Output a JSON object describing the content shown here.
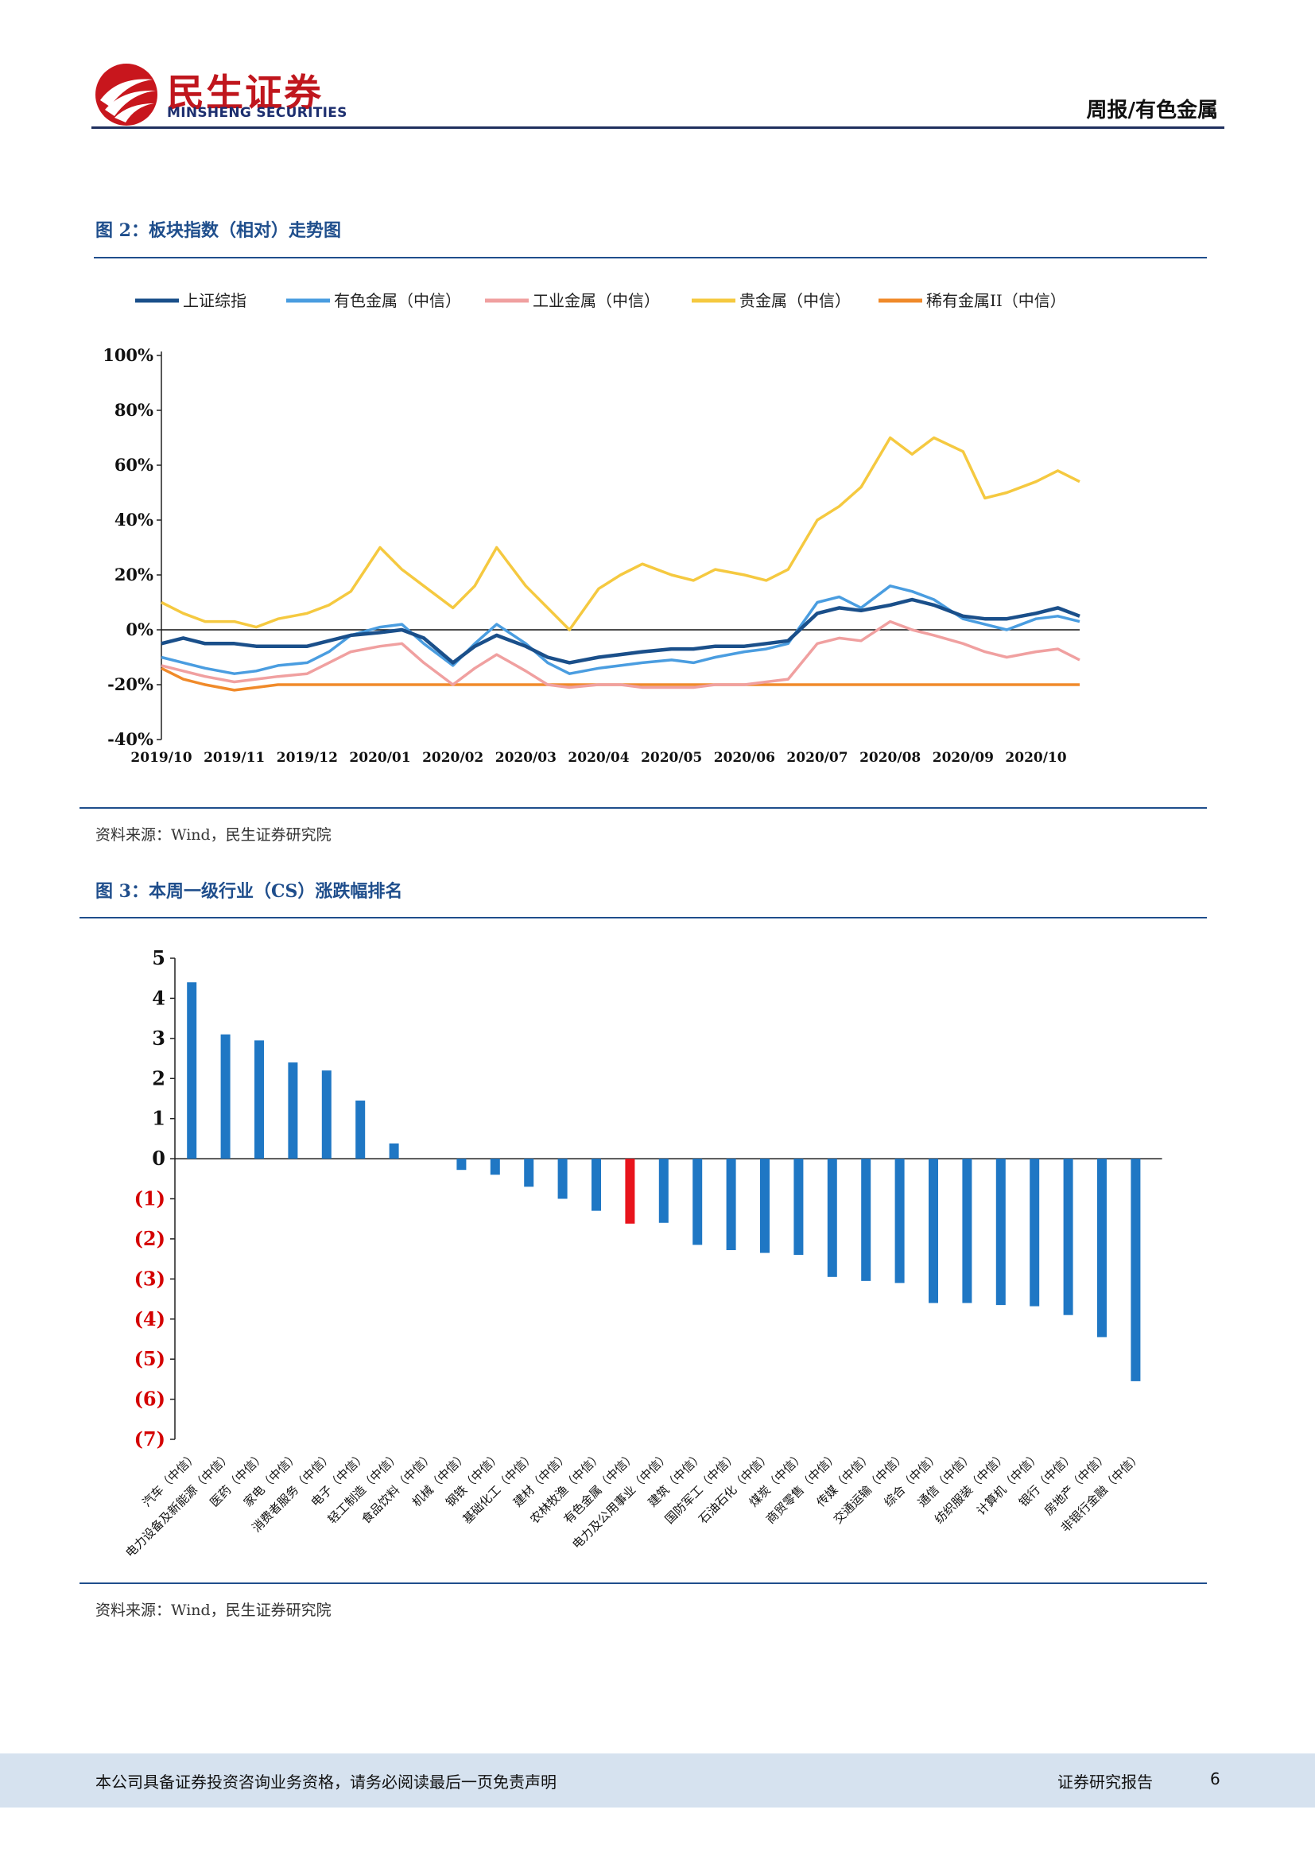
{
  "header": {
    "brand_cn": "民生证券",
    "brand_en": "MINSHENG SECURITIES",
    "section": "周报/有色金属"
  },
  "figure2": {
    "title": "图 2：板块指数（相对）走势图",
    "source": "资料来源：Wind，民生证券研究院"
  },
  "figure3": {
    "title": "图 3：本周一级行业（CS）涨跌幅排名",
    "source": "资料来源：Wind，民生证券研究院"
  },
  "footer": {
    "disclaimer": "本公司具备证券投资咨询业务资格，请务必阅读最后一页免责声明",
    "report_type": "证券研究报告",
    "page_number": "6"
  },
  "colors": {
    "shanghai": "#1a4f8a",
    "nonferrous": "#4a9de0",
    "industrial": "#f0a0a0",
    "precious": "#f5c940",
    "rare": "#f08a2a",
    "bar_blue": "#1f77c4",
    "bar_highlight": "#e8141c",
    "negative_label": "#d40000"
  },
  "chart_data": [
    {
      "type": "line",
      "title": "",
      "x": [
        "2019/10",
        "2019/11",
        "2019/12",
        "2020/01",
        "2020/02",
        "2020/03",
        "2020/04",
        "2020/05",
        "2020/06",
        "2020/07",
        "2020/08",
        "2020/09",
        "2020/10"
      ],
      "y_ticks": [
        "100%",
        "80%",
        "60%",
        "40%",
        "20%",
        "0%",
        "-20%",
        "-40%"
      ],
      "ylim": [
        -40,
        100
      ],
      "legend_position": "top",
      "series": [
        {
          "name": "上证综指",
          "color_key": "shanghai",
          "points": [
            [
              0,
              -5
            ],
            [
              0.3,
              -3
            ],
            [
              0.6,
              -5
            ],
            [
              1,
              -5
            ],
            [
              1.3,
              -6
            ],
            [
              1.6,
              -6
            ],
            [
              2,
              -6
            ],
            [
              2.3,
              -4
            ],
            [
              2.6,
              -2
            ],
            [
              3,
              -1
            ],
            [
              3.3,
              0
            ],
            [
              3.6,
              -3
            ],
            [
              4,
              -12
            ],
            [
              4.3,
              -6
            ],
            [
              4.6,
              -2
            ],
            [
              5,
              -6
            ],
            [
              5.3,
              -10
            ],
            [
              5.6,
              -12
            ],
            [
              6,
              -10
            ],
            [
              6.3,
              -9
            ],
            [
              6.6,
              -8
            ],
            [
              7,
              -7
            ],
            [
              7.3,
              -7
            ],
            [
              7.6,
              -6
            ],
            [
              8,
              -6
            ],
            [
              8.3,
              -5
            ],
            [
              8.6,
              -4
            ],
            [
              9,
              6
            ],
            [
              9.3,
              8
            ],
            [
              9.6,
              7
            ],
            [
              10,
              9
            ],
            [
              10.3,
              11
            ],
            [
              10.6,
              9
            ],
            [
              11,
              5
            ],
            [
              11.3,
              4
            ],
            [
              11.6,
              4
            ],
            [
              12,
              6
            ],
            [
              12.3,
              8
            ],
            [
              12.6,
              5
            ]
          ]
        },
        {
          "name": "有色金属（中信）",
          "color_key": "nonferrous",
          "points": [
            [
              0,
              -10
            ],
            [
              0.3,
              -12
            ],
            [
              0.6,
              -14
            ],
            [
              1,
              -16
            ],
            [
              1.3,
              -15
            ],
            [
              1.6,
              -13
            ],
            [
              2,
              -12
            ],
            [
              2.3,
              -8
            ],
            [
              2.6,
              -2
            ],
            [
              3,
              1
            ],
            [
              3.3,
              2
            ],
            [
              3.6,
              -5
            ],
            [
              4,
              -13
            ],
            [
              4.3,
              -5
            ],
            [
              4.6,
              2
            ],
            [
              5,
              -5
            ],
            [
              5.3,
              -12
            ],
            [
              5.6,
              -16
            ],
            [
              6,
              -14
            ],
            [
              6.3,
              -13
            ],
            [
              6.6,
              -12
            ],
            [
              7,
              -11
            ],
            [
              7.3,
              -12
            ],
            [
              7.6,
              -10
            ],
            [
              8,
              -8
            ],
            [
              8.3,
              -7
            ],
            [
              8.6,
              -5
            ],
            [
              9,
              10
            ],
            [
              9.3,
              12
            ],
            [
              9.6,
              8
            ],
            [
              10,
              16
            ],
            [
              10.3,
              14
            ],
            [
              10.6,
              11
            ],
            [
              11,
              4
            ],
            [
              11.3,
              2
            ],
            [
              11.6,
              0
            ],
            [
              12,
              4
            ],
            [
              12.3,
              5
            ],
            [
              12.6,
              3
            ]
          ]
        },
        {
          "name": "工业金属（中信）",
          "color_key": "industrial",
          "points": [
            [
              0,
              -13
            ],
            [
              0.3,
              -15
            ],
            [
              0.6,
              -17
            ],
            [
              1,
              -19
            ],
            [
              1.3,
              -18
            ],
            [
              1.6,
              -17
            ],
            [
              2,
              -16
            ],
            [
              2.3,
              -12
            ],
            [
              2.6,
              -8
            ],
            [
              3,
              -6
            ],
            [
              3.3,
              -5
            ],
            [
              3.6,
              -12
            ],
            [
              4,
              -20
            ],
            [
              4.3,
              -14
            ],
            [
              4.6,
              -9
            ],
            [
              5,
              -15
            ],
            [
              5.3,
              -20
            ],
            [
              5.6,
              -21
            ],
            [
              6,
              -20
            ],
            [
              6.3,
              -20
            ],
            [
              6.6,
              -21
            ],
            [
              7,
              -21
            ],
            [
              7.3,
              -21
            ],
            [
              7.6,
              -20
            ],
            [
              8,
              -20
            ],
            [
              8.3,
              -19
            ],
            [
              8.6,
              -18
            ],
            [
              9,
              -5
            ],
            [
              9.3,
              -3
            ],
            [
              9.6,
              -4
            ],
            [
              10,
              3
            ],
            [
              10.3,
              0
            ],
            [
              10.6,
              -2
            ],
            [
              11,
              -5
            ],
            [
              11.3,
              -8
            ],
            [
              11.6,
              -10
            ],
            [
              12,
              -8
            ],
            [
              12.3,
              -7
            ],
            [
              12.6,
              -11
            ]
          ]
        },
        {
          "name": "贵金属（中信）",
          "color_key": "precious",
          "points": [
            [
              0,
              10
            ],
            [
              0.3,
              6
            ],
            [
              0.6,
              3
            ],
            [
              1,
              3
            ],
            [
              1.3,
              1
            ],
            [
              1.6,
              4
            ],
            [
              2,
              6
            ],
            [
              2.3,
              9
            ],
            [
              2.6,
              14
            ],
            [
              3,
              30
            ],
            [
              3.3,
              22
            ],
            [
              3.6,
              16
            ],
            [
              4,
              8
            ],
            [
              4.3,
              16
            ],
            [
              4.6,
              30
            ],
            [
              5,
              16
            ],
            [
              5.3,
              8
            ],
            [
              5.6,
              0
            ],
            [
              6,
              15
            ],
            [
              6.3,
              20
            ],
            [
              6.6,
              24
            ],
            [
              7,
              20
            ],
            [
              7.3,
              18
            ],
            [
              7.6,
              22
            ],
            [
              8,
              20
            ],
            [
              8.3,
              18
            ],
            [
              8.6,
              22
            ],
            [
              9,
              40
            ],
            [
              9.3,
              45
            ],
            [
              9.6,
              52
            ],
            [
              10,
              70
            ],
            [
              10.3,
              64
            ],
            [
              10.6,
              70
            ],
            [
              11,
              65
            ],
            [
              11.3,
              48
            ],
            [
              11.6,
              50
            ],
            [
              12,
              54
            ],
            [
              12.3,
              58
            ],
            [
              12.6,
              54
            ]
          ]
        },
        {
          "name": "稀有金属II（中信）",
          "color_key": "rare",
          "points": [
            [
              0,
              -14
            ],
            [
              0.3,
              -18
            ],
            [
              0.6,
              -20
            ],
            [
              1,
              -22
            ],
            [
              1.3,
              -21
            ],
            [
              1.6,
              -20
            ],
            [
              2,
              -20
            ],
            [
              2.5,
              -20
            ],
            [
              3,
              -20
            ],
            [
              4,
              -20
            ],
            [
              5,
              -20
            ],
            [
              6,
              -20
            ],
            [
              7,
              -20
            ],
            [
              8,
              -20
            ],
            [
              9,
              -20
            ],
            [
              10,
              -20
            ],
            [
              11,
              -20
            ],
            [
              12,
              -20
            ],
            [
              12.6,
              -20
            ]
          ]
        }
      ]
    },
    {
      "type": "bar",
      "title": "",
      "ylim": [
        -7,
        5
      ],
      "y_ticks": [
        "5",
        "4",
        "3",
        "2",
        "1",
        "0",
        "(1)",
        "(2)",
        "(3)",
        "(4)",
        "(5)",
        "(6)",
        "(7)"
      ],
      "categories": [
        "汽车（中信）",
        "电力设备及新能源（中信）",
        "医药（中信）",
        "家电（中信）",
        "消费者服务（中信）",
        "电子（中信）",
        "轻工制造（中信）",
        "食品饮料（中信）",
        "机械（中信）",
        "钢铁（中信）",
        "基础化工（中信）",
        "建材（中信）",
        "农林牧渔（中信）",
        "有色金属（中信）",
        "电力及公用事业（中信）",
        "建筑（中信）",
        "国防军工（中信）",
        "石油石化（中信）",
        "煤炭（中信）",
        "商贸零售（中信）",
        "传媒（中信）",
        "交通运输（中信）",
        "综合（中信）",
        "通信（中信）",
        "纺织服装（中信）",
        "计算机（中信）",
        "银行（中信）",
        "房地产（中信）",
        "非银行金融（中信）"
      ],
      "values": [
        4.4,
        3.1,
        2.95,
        2.4,
        2.2,
        1.45,
        0.38,
        0.0,
        -0.28,
        -0.4,
        -0.7,
        -1.0,
        -1.3,
        -1.62,
        -1.6,
        -2.15,
        -2.28,
        -2.35,
        -2.4,
        -2.95,
        -3.05,
        -3.1,
        -3.6,
        -3.6,
        -3.65,
        -3.68,
        -3.9,
        -4.45,
        -5.55
      ],
      "highlight": "有色金属（中信）"
    }
  ]
}
